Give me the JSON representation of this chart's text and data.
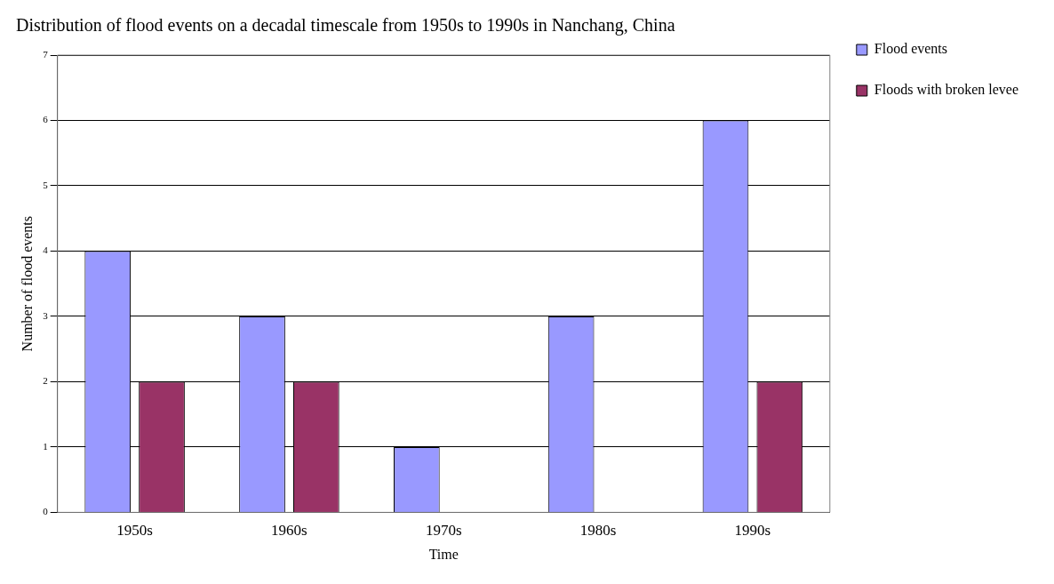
{
  "chart_data": {
    "type": "bar",
    "title": "Distribution of flood events on a decadal timescale from 1950s to 1990s in Nanchang, China",
    "xlabel": "Time",
    "ylabel": "Number of flood events",
    "categories": [
      "1950s",
      "1960s",
      "1970s",
      "1980s",
      "1990s"
    ],
    "series": [
      {
        "name": "Flood events",
        "color": "#9999ff",
        "values": [
          4,
          3,
          1,
          3,
          6
        ]
      },
      {
        "name": "Floods with broken levee",
        "color": "#993366",
        "values": [
          2,
          2,
          0,
          0,
          2
        ]
      }
    ],
    "ylim": [
      0,
      7
    ],
    "yticks": [
      0,
      1,
      2,
      3,
      4,
      5,
      6,
      7
    ],
    "grid": "y",
    "legend": "right"
  }
}
